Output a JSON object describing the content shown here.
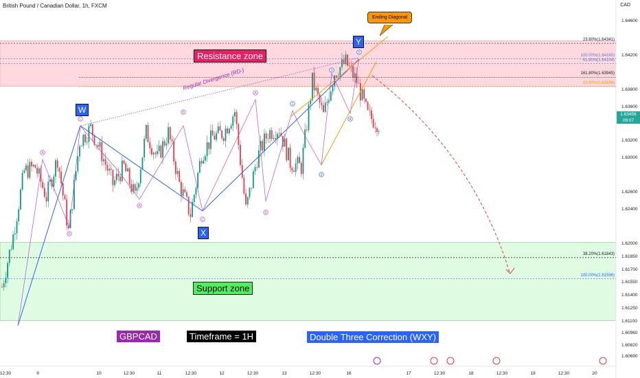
{
  "header": {
    "title": "British Pound / Canadian Dollar, 1h, FXCM",
    "currency": "CAD"
  },
  "annotations": {
    "resistance_zone": "Resistance zone",
    "support_zone": "Support zone",
    "pair": "GBPCAD",
    "timeframe": "Timeframe = 1H",
    "pattern": "Double Three Correction (WXY)",
    "ending_diagonal": "Ending Diagonal",
    "divergence": "Regular Divergence (RD-)",
    "w": "W",
    "x": "X",
    "y": "Y"
  },
  "price_tag": {
    "price": "1.63456",
    "timer": "09:07"
  },
  "colors": {
    "up": "#089981",
    "down": "#f23645",
    "resistance": "#ffcdd2",
    "support": "#dcfce0",
    "wave": "#2962ff",
    "sub": "#b34fcc",
    "diagonal": "#ff9800"
  },
  "chart_data": {
    "type": "candlestick",
    "symbol": "GBPCAD",
    "ylim": [
      1.606,
      1.6475
    ],
    "yticks": [
      "1.64600",
      "1.64200",
      "1.63800",
      "1.63600",
      "1.63200",
      "1.63000",
      "1.62600",
      "1.62400",
      "1.62000",
      "1.61850",
      "1.61700",
      "1.61550",
      "1.61400",
      "1.61250",
      "1.61100",
      "1.60960",
      "1.60820",
      "1.60690"
    ],
    "xticks": [
      "12:30",
      "9",
      "10",
      "12:30",
      "11",
      "12:30",
      "12",
      "12:30",
      "13",
      "12:30",
      "16",
      "17",
      "12:30",
      "18",
      "12:30",
      "19",
      "12:30",
      "20"
    ],
    "levels": [
      {
        "label": "23.60%(1.64341)",
        "value": 1.64341
      },
      {
        "label": "100.00%(1.64160)",
        "value": 1.6416
      },
      {
        "label": "61.80%(1.64104)",
        "value": 1.64104
      },
      {
        "label": "161.80%(1.63945)",
        "value": 1.63945
      },
      {
        "label": "61.80%(1.63836)",
        "value": 1.63836
      },
      {
        "label": "38.20%(1.61843)",
        "value": 1.61843
      },
      {
        "label": "100.00%(1.61596)",
        "value": 1.61596
      }
    ],
    "zones": [
      {
        "name": "resistance",
        "from": 1.6384,
        "to": 1.6437
      },
      {
        "name": "support",
        "from": 1.6111,
        "to": 1.6202
      }
    ],
    "waves": {
      "main": [
        {
          "label": "W",
          "price": 1.6335
        },
        {
          "label": "X",
          "price": 1.6233
        },
        {
          "label": "Y",
          "price": 1.6412
        }
      ],
      "start_price": 1.61,
      "sub_labels": [
        "A",
        "B",
        "C",
        "A",
        "B",
        "C",
        "A",
        "B",
        "1",
        "2",
        "3",
        "4",
        "5"
      ]
    },
    "candles_path": [
      1.615,
      1.621,
      1.6285,
      1.629,
      1.6255,
      1.63,
      1.6215,
      1.632,
      1.6335,
      1.6305,
      1.627,
      1.629,
      1.6255,
      1.633,
      1.63,
      1.633,
      1.627,
      1.6235,
      1.6305,
      1.6325,
      1.633,
      1.6355,
      1.624,
      1.63,
      1.633,
      1.6335,
      1.6295,
      1.629,
      1.639,
      1.635,
      1.64,
      1.6412,
      1.639,
      1.635,
      1.634
    ]
  }
}
